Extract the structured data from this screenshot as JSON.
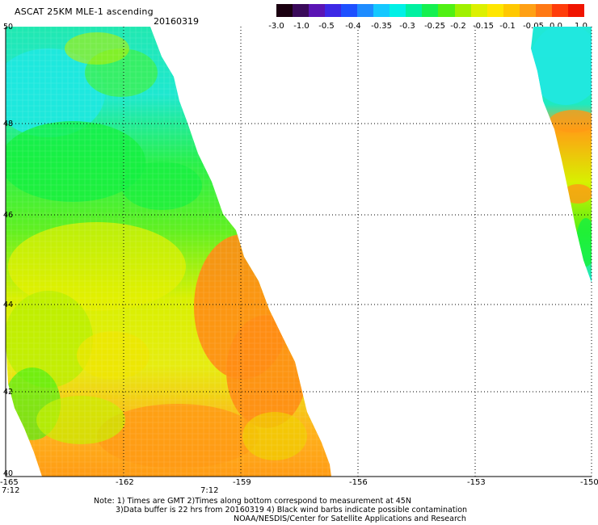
{
  "title": "ASCAT 25KM MLE-1 ascending",
  "date": "20160319",
  "colorbar": {
    "labels": [
      "-3.0",
      "-1.0",
      "-0.5",
      "-0.4",
      "-0.35",
      "-0.3",
      "-0.25",
      "-0.2",
      "-0.15",
      "-0.1",
      "-0.05",
      "0.0",
      "1.0"
    ],
    "colors": [
      "#1a0010",
      "#3a0a5a",
      "#5a14b4",
      "#3c28e6",
      "#1e50ff",
      "#1e8cff",
      "#14c8ff",
      "#00f0e6",
      "#00f0a0",
      "#14f050",
      "#50f014",
      "#a0f000",
      "#dcf000",
      "#ffe600",
      "#ffc800",
      "#ffa014",
      "#ff7814",
      "#ff3c0a",
      "#f01400"
    ]
  },
  "map": {
    "lat_labels": [
      "50",
      "48",
      "46",
      "44",
      "42",
      "40"
    ],
    "lon_labels": [
      "-165",
      "-162",
      "-159",
      "-156",
      "-153",
      "-150"
    ],
    "time_labels": [
      "7:12",
      "7:12"
    ]
  },
  "notes": [
    "Note: 1) Times are GMT 2)Times along bottom correspond to measurement at 45N",
    "3)Data buffer is 22 hrs from 20160319 4) Black wind barbs indicate possible contamination",
    "NOAA/NESDIS/Center for Satellite Applications and Research"
  ]
}
